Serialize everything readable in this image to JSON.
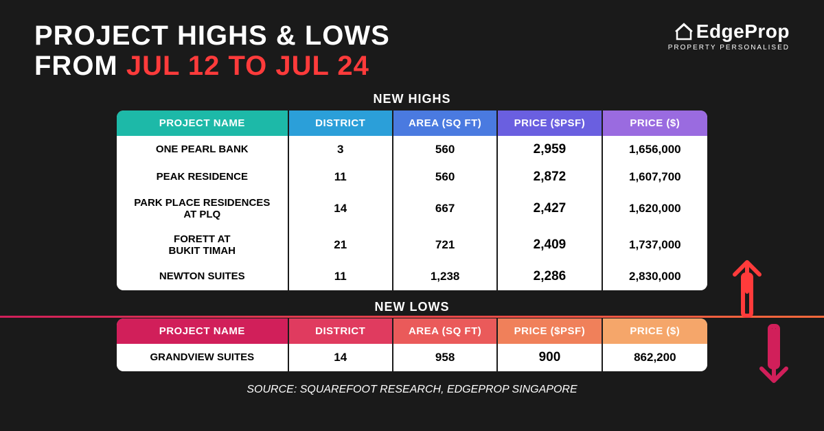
{
  "header": {
    "title_line1": "PROJECT HIGHS & LOWS",
    "title_line2_prefix": "FROM ",
    "title_line2_accent": "JUL 12 TO JUL 24"
  },
  "logo": {
    "brand": "EdgeProp",
    "tagline": "PROPERTY PERSONALISED"
  },
  "section_highs_label": "NEW HIGHS",
  "section_lows_label": "NEW LOWS",
  "columns": {
    "name": "PROJECT NAME",
    "district": "DISTRICT",
    "area": "AREA (SQ FT)",
    "psf": "PRICE ($PSF)",
    "price": "PRICE ($)"
  },
  "highs_header_colors": [
    "#1db9a8",
    "#2b9fd9",
    "#4a7ae0",
    "#6a5fe0",
    "#9a6be0"
  ],
  "lows_header_colors": [
    "#d11f5a",
    "#e03b5f",
    "#ea5a5a",
    "#f0805a",
    "#f5a66a"
  ],
  "highs": [
    {
      "name": "ONE PEARL BANK",
      "district": "3",
      "area": "560",
      "psf": "2,959",
      "price": "1,656,000"
    },
    {
      "name": "PEAK RESIDENCE",
      "district": "11",
      "area": "560",
      "psf": "2,872",
      "price": "1,607,700"
    },
    {
      "name": "PARK PLACE RESIDENCES AT PLQ",
      "district": "14",
      "area": "667",
      "psf": "2,427",
      "price": "1,620,000"
    },
    {
      "name": "FORETT AT BUKIT TIMAH",
      "district": "21",
      "area": "721",
      "psf": "2,409",
      "price": "1,737,000"
    },
    {
      "name": "NEWTON SUITES",
      "district": "11",
      "area": "1,238",
      "psf": "2,286",
      "price": "2,830,000"
    }
  ],
  "lows": [
    {
      "name": "GRANDVIEW SUITES",
      "district": "14",
      "area": "958",
      "psf": "900",
      "price": "862,200"
    }
  ],
  "source": "SOURCE: SQUAREFOOT RESEARCH, EDGEPROP SINGAPORE",
  "styling": {
    "background": "#1a1a1a",
    "title_color": "#ffffff",
    "accent_color": "#ff3b3b",
    "table_bg": "#ffffff",
    "cell_border": "#1a1a1a",
    "arrow_up_color": "#ff3b3b",
    "arrow_down_color": "#d11f5a",
    "divider_gradient": [
      "#d11f5a",
      "#ff6a3b"
    ]
  }
}
